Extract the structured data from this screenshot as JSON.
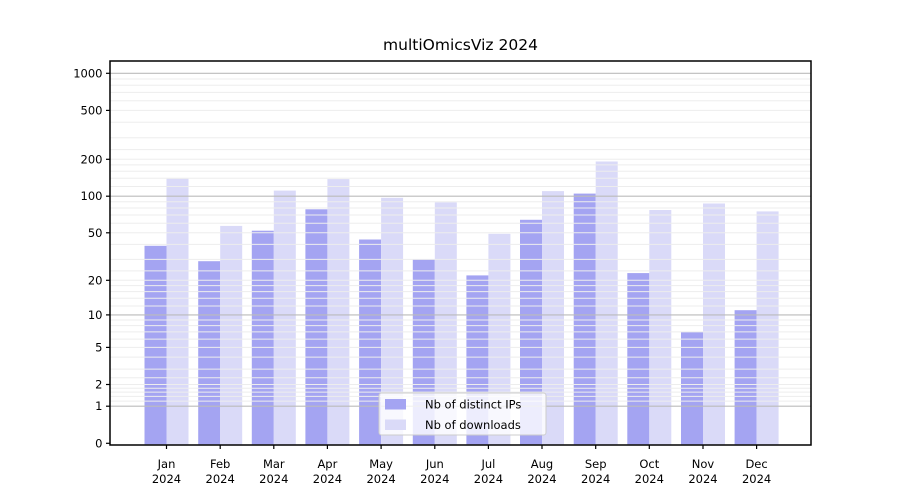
{
  "title": "multiOmicsViz 2024",
  "chart_data": {
    "type": "bar",
    "title": "multiOmicsViz 2024",
    "categories": [
      "Jan",
      "Feb",
      "Mar",
      "Apr",
      "May",
      "Jun",
      "Jul",
      "Aug",
      "Sep",
      "Oct",
      "Nov",
      "Dec"
    ],
    "year_label": "2024",
    "series": [
      {
        "name": "Nb of distinct IPs",
        "color": "#a4a4f2",
        "values": [
          39,
          29,
          52,
          78,
          44,
          30,
          22,
          64,
          105,
          23,
          7,
          11
        ]
      },
      {
        "name": "Nb of downloads",
        "color": "#dadaf8",
        "values": [
          139,
          57,
          111,
          138,
          97,
          89,
          49,
          110,
          192,
          77,
          87,
          75
        ]
      }
    ],
    "y_scale": "log1p",
    "y_ticks": [
      0,
      1,
      2,
      5,
      10,
      20,
      50,
      100,
      200,
      500,
      1000
    ],
    "ylim": [
      0,
      1258
    ],
    "xlabel": "",
    "ylabel": "",
    "grid": true,
    "grid_above_bars": true,
    "legend_position": "lower center",
    "colors": {
      "major_grid": "#bbbbbb",
      "minor_grid": "#ededed",
      "frame": "#000000",
      "background": "#ffffff",
      "legend_border": "#cccccc"
    }
  }
}
